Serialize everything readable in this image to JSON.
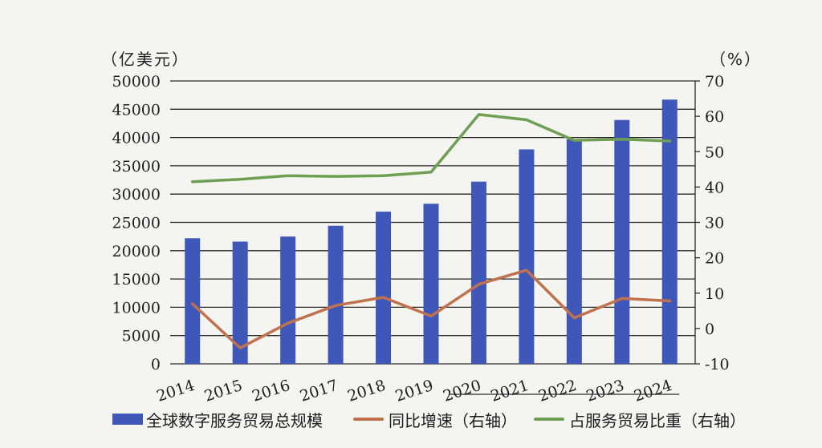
{
  "chart_data": {
    "type": "bar",
    "categories": [
      "2014",
      "2015",
      "2016",
      "2017",
      "2018",
      "2019",
      "2020",
      "2021",
      "2022",
      "2023",
      "2024"
    ],
    "y_left": {
      "unit_label": "（亿美元）",
      "ylim": [
        0,
        50000
      ],
      "ticks": [
        "0",
        "5000",
        "10000",
        "15000",
        "20000",
        "25000",
        "30000",
        "35000",
        "40000",
        "45000",
        "50000"
      ]
    },
    "y_right": {
      "unit_label": "（%）",
      "ylim": [
        -10,
        70
      ],
      "ticks": [
        "-10",
        "0",
        "10",
        "20",
        "30",
        "40",
        "50",
        "60",
        "70"
      ]
    },
    "series": [
      {
        "name": "全球数字服务贸易总规模",
        "type": "bar",
        "axis": "left",
        "color": "#3f57b8",
        "values": [
          22200,
          21600,
          22500,
          24400,
          26900,
          28300,
          32200,
          37900,
          39700,
          43100,
          46700
        ]
      },
      {
        "name": "同比增速（右轴）",
        "type": "line",
        "axis": "right",
        "color": "#c0714e",
        "values": [
          7,
          -5.5,
          1.5,
          6.5,
          8.8,
          3.5,
          12.5,
          16.5,
          3,
          8.5,
          7.8
        ]
      },
      {
        "name": "占服务贸易比重（右轴）",
        "type": "line",
        "axis": "right",
        "color": "#6e9f52",
        "values": [
          41.5,
          42.2,
          43.2,
          43,
          43.2,
          44.2,
          60.5,
          59,
          53.2,
          53.5,
          53
        ]
      }
    ],
    "grid": true,
    "legend_position": "bottom"
  }
}
